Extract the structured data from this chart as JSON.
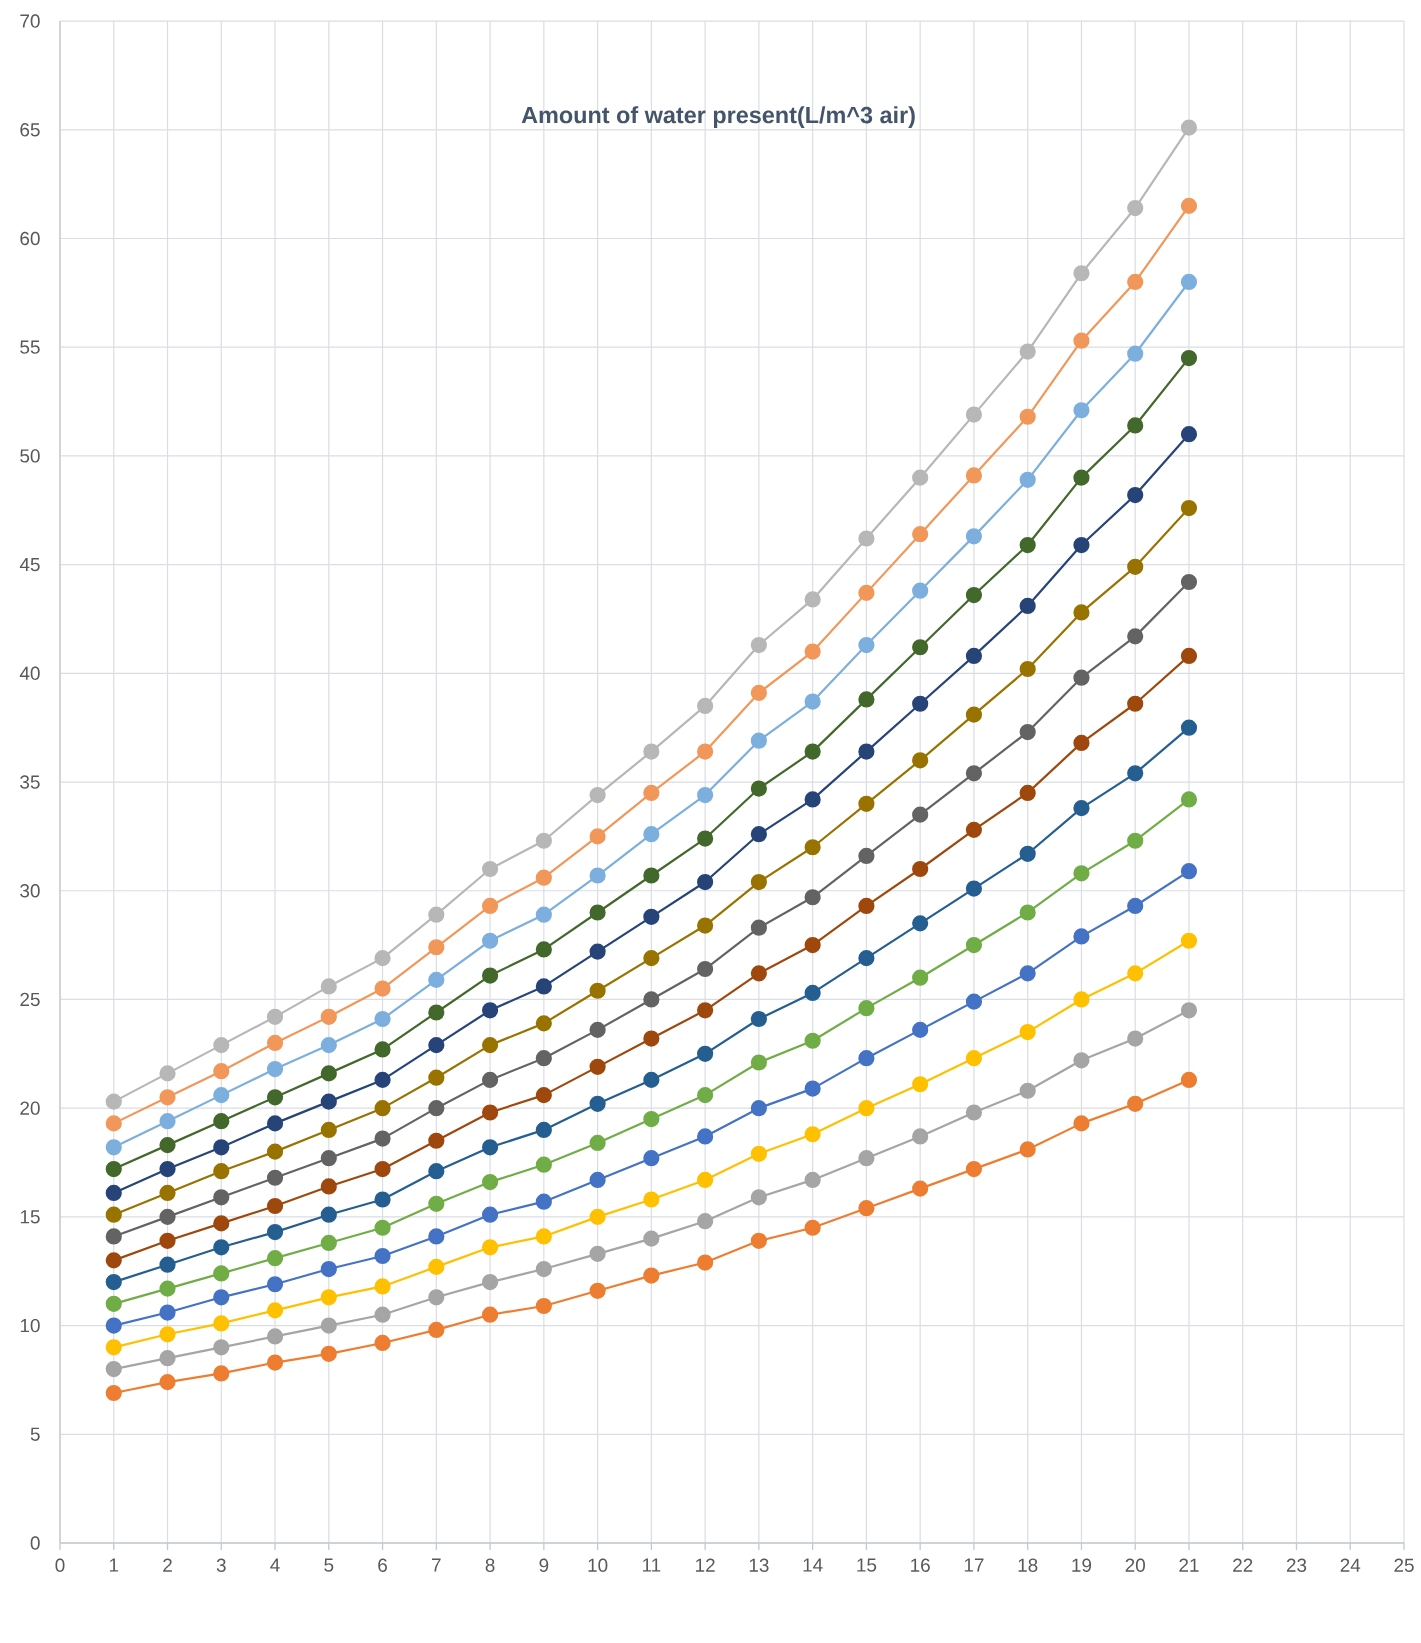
{
  "chart_data": {
    "type": "line",
    "title": "Amount of water present(L/m^3 air)",
    "x": [
      1,
      2,
      3,
      4,
      5,
      6,
      7,
      8,
      9,
      10,
      11,
      12,
      13,
      14,
      15,
      16,
      17,
      18,
      19,
      20,
      21
    ],
    "series": [
      {
        "color": "#ed7d31",
        "values": [
          6.9,
          7.4,
          7.8,
          8.3,
          8.7,
          9.2,
          9.8,
          10.5,
          10.9,
          11.6,
          12.3,
          12.9,
          13.9,
          14.5,
          15.4,
          16.3,
          17.2,
          18.1,
          19.3,
          20.2,
          21.3
        ]
      },
      {
        "color": "#a5a5a5",
        "values": [
          8.0,
          8.5,
          9.0,
          9.5,
          10.0,
          10.5,
          11.3,
          12.0,
          12.6,
          13.3,
          14.0,
          14.8,
          15.9,
          16.7,
          17.7,
          18.7,
          19.8,
          20.8,
          22.2,
          23.2,
          24.5
        ]
      },
      {
        "color": "#ffc000",
        "values": [
          9.0,
          9.6,
          10.1,
          10.7,
          11.3,
          11.8,
          12.7,
          13.6,
          14.1,
          15.0,
          15.8,
          16.7,
          17.9,
          18.8,
          20.0,
          21.1,
          22.3,
          23.5,
          25.0,
          26.2,
          27.7
        ]
      },
      {
        "color": "#4472c4",
        "values": [
          10.0,
          10.6,
          11.3,
          11.9,
          12.6,
          13.2,
          14.1,
          15.1,
          15.7,
          16.7,
          17.7,
          18.7,
          20.0,
          20.9,
          22.3,
          23.6,
          24.9,
          26.2,
          27.9,
          29.3,
          30.9
        ]
      },
      {
        "color": "#70ad47",
        "values": [
          11.0,
          11.7,
          12.4,
          13.1,
          13.8,
          14.5,
          15.6,
          16.6,
          17.4,
          18.4,
          19.5,
          20.6,
          22.1,
          23.1,
          24.6,
          26.0,
          27.5,
          29.0,
          30.8,
          32.3,
          34.2
        ]
      },
      {
        "color": "#255e91",
        "values": [
          12.0,
          12.8,
          13.6,
          14.3,
          15.1,
          15.8,
          17.1,
          18.2,
          19.0,
          20.2,
          21.3,
          22.5,
          24.1,
          25.3,
          26.9,
          28.5,
          30.1,
          31.7,
          33.8,
          35.4,
          37.5
        ]
      },
      {
        "color": "#9e480e",
        "values": [
          13.0,
          13.9,
          14.7,
          15.5,
          16.4,
          17.2,
          18.5,
          19.8,
          20.6,
          21.9,
          23.2,
          24.5,
          26.2,
          27.5,
          29.3,
          31.0,
          32.8,
          34.5,
          36.8,
          38.6,
          40.8
        ]
      },
      {
        "color": "#636363",
        "values": [
          14.1,
          15.0,
          15.9,
          16.8,
          17.7,
          18.6,
          20.0,
          21.3,
          22.3,
          23.6,
          25.0,
          26.4,
          28.3,
          29.7,
          31.6,
          33.5,
          35.4,
          37.3,
          39.8,
          41.7,
          44.2
        ]
      },
      {
        "color": "#997300",
        "values": [
          15.1,
          16.1,
          17.1,
          18.0,
          19.0,
          20.0,
          21.4,
          22.9,
          23.9,
          25.4,
          26.9,
          28.4,
          30.4,
          32.0,
          34.0,
          36.0,
          38.1,
          40.2,
          42.8,
          44.9,
          47.6
        ]
      },
      {
        "color": "#264478",
        "values": [
          16.1,
          17.2,
          18.2,
          19.3,
          20.3,
          21.3,
          22.9,
          24.5,
          25.6,
          27.2,
          28.8,
          30.4,
          32.6,
          34.2,
          36.4,
          38.6,
          40.8,
          43.1,
          45.9,
          48.2,
          51.0
        ]
      },
      {
        "color": "#43682b",
        "values": [
          17.2,
          18.3,
          19.4,
          20.5,
          21.6,
          22.7,
          24.4,
          26.1,
          27.3,
          29.0,
          30.7,
          32.4,
          34.7,
          36.4,
          38.8,
          41.2,
          43.6,
          45.9,
          49.0,
          51.4,
          54.5
        ]
      },
      {
        "color": "#7cafdd",
        "values": [
          18.2,
          19.4,
          20.6,
          21.8,
          22.9,
          24.1,
          25.9,
          27.7,
          28.9,
          30.7,
          32.6,
          34.4,
          36.9,
          38.7,
          41.3,
          43.8,
          46.3,
          48.9,
          52.1,
          54.7,
          58.0
        ]
      },
      {
        "color": "#f1975a",
        "values": [
          19.3,
          20.5,
          21.7,
          23.0,
          24.2,
          25.5,
          27.4,
          29.3,
          30.6,
          32.5,
          34.5,
          36.4,
          39.1,
          41.0,
          43.7,
          46.4,
          49.1,
          51.8,
          55.3,
          58.0,
          61.5
        ]
      },
      {
        "color": "#b7b7b7",
        "values": [
          20.3,
          21.6,
          22.9,
          24.2,
          25.6,
          26.9,
          28.9,
          31.0,
          32.3,
          34.4,
          36.4,
          38.5,
          41.3,
          43.4,
          46.2,
          49.0,
          51.9,
          54.8,
          58.4,
          61.4,
          65.1
        ]
      }
    ],
    "xlim": [
      0,
      25
    ],
    "ylim": [
      0,
      70
    ],
    "xticks": [
      0,
      1,
      2,
      3,
      4,
      5,
      6,
      7,
      8,
      9,
      10,
      11,
      12,
      13,
      14,
      15,
      16,
      17,
      18,
      19,
      20,
      21,
      22,
      23,
      24,
      25
    ],
    "yticks": [
      0,
      5,
      10,
      15,
      20,
      25,
      30,
      35,
      40,
      45,
      50,
      55,
      60,
      65,
      70
    ],
    "grid": true,
    "marker": "circle",
    "line_style": "solid"
  }
}
